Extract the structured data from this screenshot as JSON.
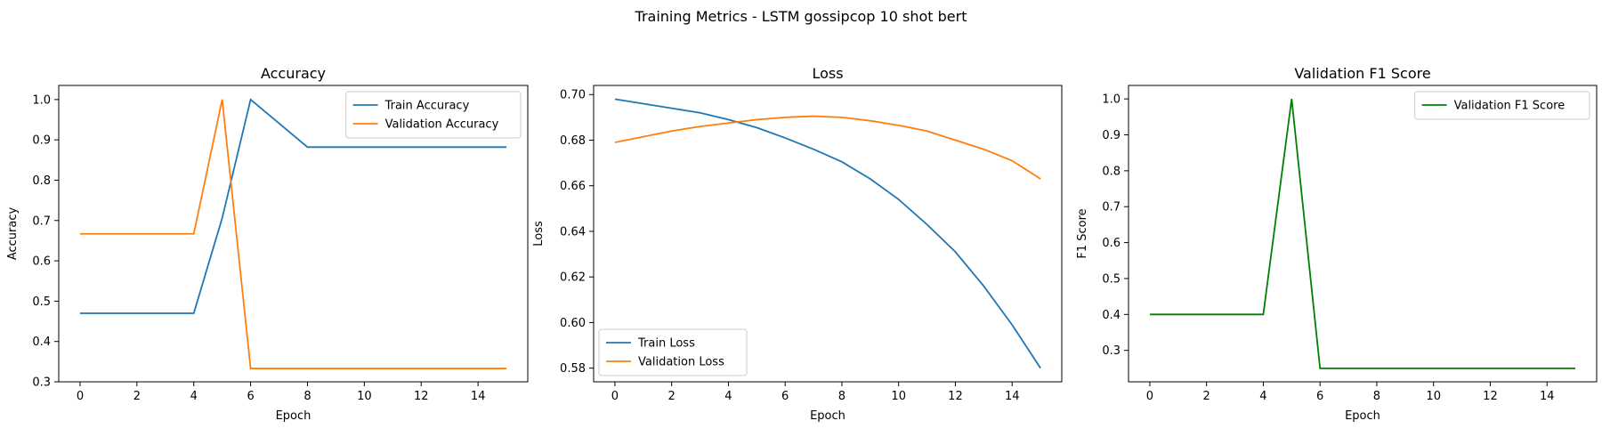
{
  "figure": {
    "suptitle": "Training Metrics - LSTM gossipcop 10 shot bert"
  },
  "chart_data": [
    {
      "type": "line",
      "title": "Accuracy",
      "xlabel": "Epoch",
      "ylabel": "Accuracy",
      "xlim": [
        -0.75,
        15.75
      ],
      "ylim": [
        0.3,
        1.035
      ],
      "xticks": [
        0,
        2,
        4,
        6,
        8,
        10,
        12,
        14
      ],
      "yticks": [
        0.3,
        0.4,
        0.5,
        0.6,
        0.7,
        0.8,
        0.9,
        1.0
      ],
      "ytick_decimals": 1,
      "grid": false,
      "legend": "top-right",
      "x": [
        0,
        1,
        2,
        3,
        4,
        5,
        6,
        7,
        8,
        9,
        10,
        11,
        12,
        13,
        14,
        15
      ],
      "series": [
        {
          "name": "Train Accuracy",
          "color": "#1f77b4",
          "values": [
            0.47,
            0.47,
            0.47,
            0.47,
            0.47,
            0.706,
            1.0,
            0.941,
            0.882,
            0.882,
            0.882,
            0.882,
            0.882,
            0.882,
            0.882,
            0.882
          ]
        },
        {
          "name": "Validation Accuracy",
          "color": "#ff7f0e",
          "values": [
            0.667,
            0.667,
            0.667,
            0.667,
            0.667,
            1.0,
            0.333,
            0.333,
            0.333,
            0.333,
            0.333,
            0.333,
            0.333,
            0.333,
            0.333,
            0.333
          ]
        }
      ]
    },
    {
      "type": "line",
      "title": "Loss",
      "xlabel": "Epoch",
      "ylabel": "Loss",
      "xlim": [
        -0.75,
        15.75
      ],
      "ylim": [
        0.574,
        0.704
      ],
      "xticks": [
        0,
        2,
        4,
        6,
        8,
        10,
        12,
        14
      ],
      "yticks": [
        0.58,
        0.6,
        0.62,
        0.64,
        0.66,
        0.68,
        0.7
      ],
      "ytick_decimals": 2,
      "grid": false,
      "legend": "bottom-left",
      "x": [
        0,
        1,
        2,
        3,
        4,
        5,
        6,
        7,
        8,
        9,
        10,
        11,
        12,
        13,
        14,
        15
      ],
      "series": [
        {
          "name": "Train Loss",
          "color": "#1f77b4",
          "values": [
            0.698,
            0.696,
            0.694,
            0.692,
            0.689,
            0.6855,
            0.681,
            0.676,
            0.6705,
            0.663,
            0.654,
            0.643,
            0.631,
            0.616,
            0.599,
            0.58
          ]
        },
        {
          "name": "Validation Loss",
          "color": "#ff7f0e",
          "values": [
            0.679,
            0.6815,
            0.684,
            0.686,
            0.6875,
            0.689,
            0.69,
            0.6905,
            0.69,
            0.6885,
            0.6865,
            0.684,
            0.68,
            0.676,
            0.671,
            0.663
          ]
        }
      ]
    },
    {
      "type": "line",
      "title": "Validation F1 Score",
      "xlabel": "Epoch",
      "ylabel": "F1 Score",
      "xlim": [
        -0.75,
        15.75
      ],
      "ylim": [
        0.2125,
        1.0375
      ],
      "xticks": [
        0,
        2,
        4,
        6,
        8,
        10,
        12,
        14
      ],
      "yticks": [
        0.3,
        0.4,
        0.5,
        0.6,
        0.7,
        0.8,
        0.9,
        1.0
      ],
      "ytick_decimals": 1,
      "grid": false,
      "legend": "top-right",
      "x": [
        0,
        1,
        2,
        3,
        4,
        5,
        6,
        7,
        8,
        9,
        10,
        11,
        12,
        13,
        14,
        15
      ],
      "series": [
        {
          "name": "Validation F1 Score",
          "color": "#008000",
          "values": [
            0.4,
            0.4,
            0.4,
            0.4,
            0.4,
            1.0,
            0.25,
            0.25,
            0.25,
            0.25,
            0.25,
            0.25,
            0.25,
            0.25,
            0.25,
            0.25
          ]
        }
      ]
    }
  ]
}
